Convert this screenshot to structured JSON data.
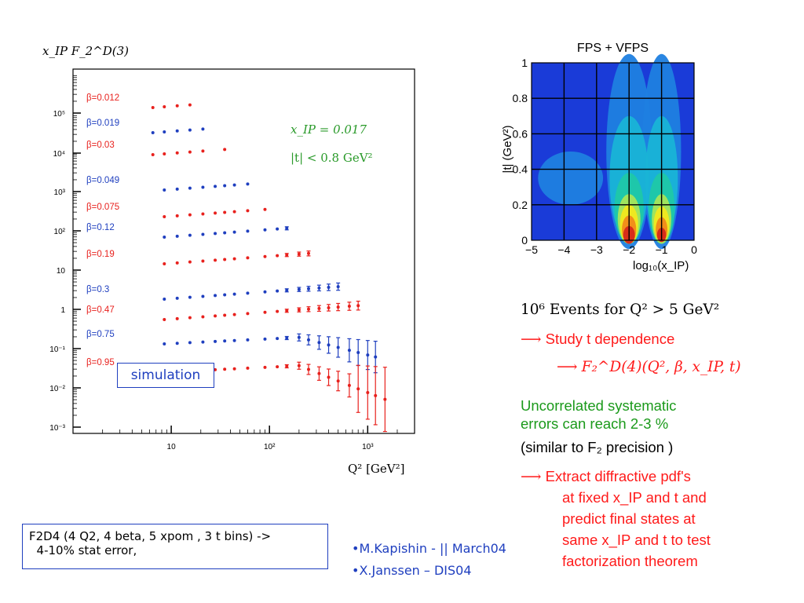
{
  "chart_data": [
    {
      "type": "scatter",
      "ylabel": "x_IP F_2^D(3)",
      "xlabel": "Q² [GeV²]",
      "x_scale": "log",
      "y_scale": "log",
      "xlim": [
        1.0,
        3000
      ],
      "x_tick_labels": [
        "10",
        "10²",
        "10³"
      ],
      "y_tick_labels": [
        "10⁵",
        "10⁴",
        "10³",
        "10²",
        "10",
        "1",
        "10⁻¹",
        "10⁻²",
        "10⁻³"
      ],
      "annotations": [
        "x_IP = 0.017",
        "|t| < 0.8 GeV²"
      ],
      "series": [
        {
          "name": "β=0.012",
          "color": "#e8211d",
          "x": [
            6.5,
            8.5,
            11.5,
            15.5
          ]
        },
        {
          "name": "β=0.019",
          "color": "#1f3fbf",
          "x": [
            6.5,
            8.5,
            11.5,
            15.5,
            21
          ]
        },
        {
          "name": "β=0.03",
          "color": "#e8211d",
          "x": [
            6.5,
            8.5,
            11.5,
            15.5,
            21,
            35
          ]
        },
        {
          "name": "β=0.049",
          "color": "#1f3fbf",
          "x": [
            8.5,
            11.5,
            15.5,
            21,
            28,
            35,
            44,
            60
          ]
        },
        {
          "name": "β=0.075",
          "color": "#e8211d",
          "x": [
            8.5,
            11.5,
            15.5,
            21,
            28,
            35,
            44,
            60,
            90
          ]
        },
        {
          "name": "β=0.12",
          "color": "#1f3fbf",
          "x": [
            8.5,
            11.5,
            15.5,
            21,
            28,
            35,
            44,
            60,
            90,
            120,
            150
          ]
        },
        {
          "name": "β=0.19",
          "color": "#e8211d",
          "x": [
            8.5,
            11.5,
            15.5,
            21,
            28,
            35,
            44,
            60,
            90,
            120,
            150,
            200,
            250
          ]
        },
        {
          "name": "β=0.3",
          "color": "#1f3fbf",
          "x": [
            8.5,
            11.5,
            15.5,
            21,
            28,
            35,
            44,
            60,
            90,
            120,
            150,
            200,
            250,
            320,
            400,
            500
          ]
        },
        {
          "name": "β=0.47",
          "color": "#e8211d",
          "x": [
            8.5,
            11.5,
            15.5,
            21,
            28,
            35,
            44,
            60,
            90,
            120,
            150,
            200,
            250,
            320,
            400,
            500,
            650,
            800
          ]
        },
        {
          "name": "β=0.75",
          "color": "#1f3fbf",
          "x": [
            8.5,
            11.5,
            15.5,
            21,
            28,
            35,
            44,
            60,
            90,
            120,
            150,
            200,
            250,
            320,
            400,
            500,
            650,
            800,
            1000,
            1200
          ]
        },
        {
          "name": "β=0.95",
          "color": "#e8211d",
          "x": [
            8.5,
            11.5,
            15.5,
            21,
            28,
            35,
            44,
            60,
            90,
            120,
            150,
            200,
            250,
            320,
            400,
            500,
            650,
            800,
            1000,
            1200,
            1500
          ]
        }
      ],
      "simulation_label": "simulation"
    },
    {
      "type": "heatmap",
      "title": "FPS + VFPS",
      "xlabel": "log₁₀(x_IP)",
      "ylabel": "|t| (GeV²)",
      "xlim": [
        -5,
        0
      ],
      "ylim": [
        0,
        1
      ],
      "x_ticks": [
        -5,
        -4,
        -3,
        -2,
        -1,
        0
      ],
      "y_ticks": [
        0,
        0.2,
        0.4,
        0.6,
        0.8,
        1
      ],
      "colors": [
        "#1a3bd8",
        "#1f7fe0",
        "#19b4d6",
        "#1fc8a8",
        "#a6e65a",
        "#f2e81c",
        "#f08a1a",
        "#d6281a"
      ]
    }
  ],
  "right_panel": {
    "events": "10⁶ Events for Q² > 5 GeV²",
    "study_arrow": "⟶",
    "study_text": "Study t dependence",
    "f2_arrow": "⟶",
    "f2_text": "F₂^D(4)(Q², β, x_IP, t)",
    "uncorr_line1": "Uncorrelated systematic",
    "uncorr_line2": "errors can reach 2-3 %",
    "similar": "(similar to F₂ precision )",
    "extract_arrow": "⟶",
    "extract_line1": "Extract diffractive pdf's",
    "extract_line2": "at fixed x_IP and t and",
    "extract_line3": "predict final states at",
    "extract_line4": "same x_IP and t to test",
    "extract_line5": "factorization theorem"
  },
  "note_box": {
    "line1": "F2D4 (4 Q2, 4 beta, 5 xpom , 3 t bins) ->",
    "line2": "  4-10% stat error,"
  },
  "authors": [
    "•M.Kapishin - || March04",
    "•X.Janssen – DIS04"
  ]
}
